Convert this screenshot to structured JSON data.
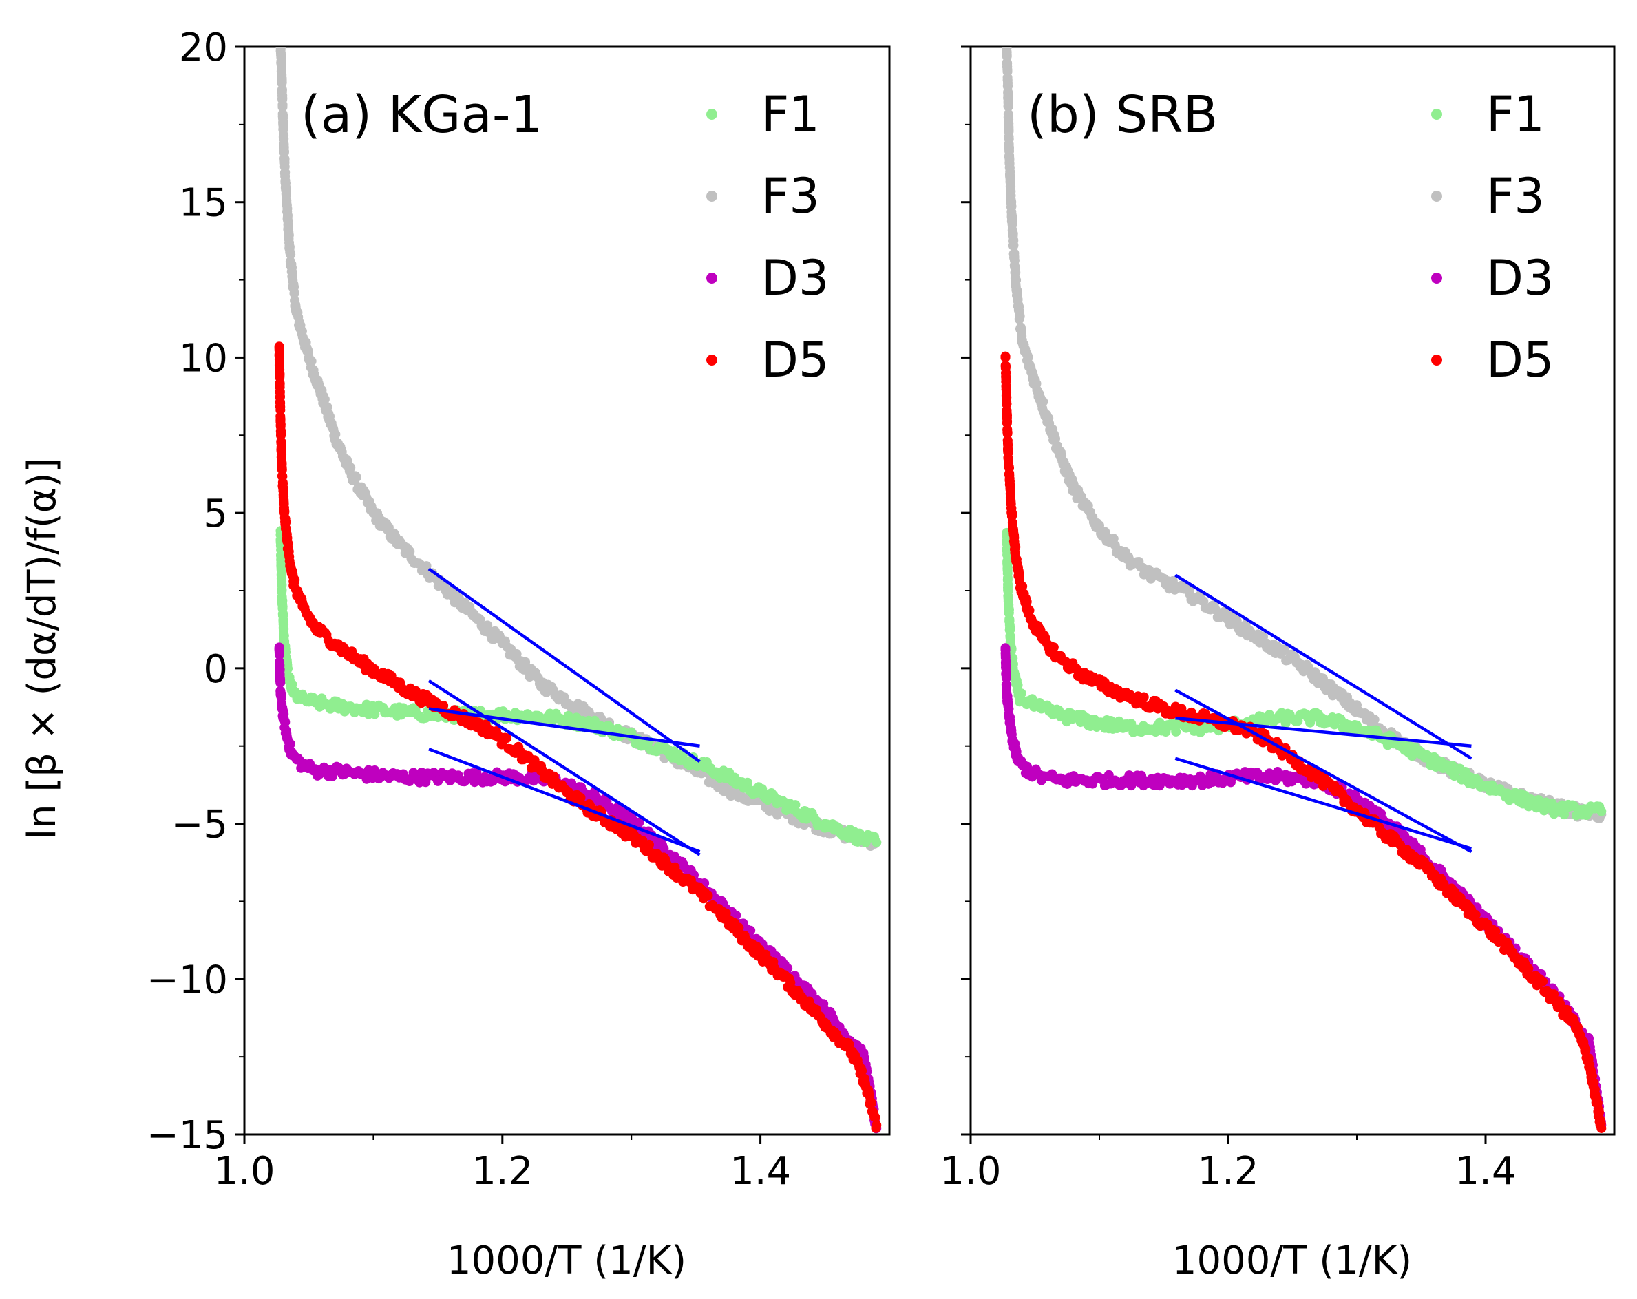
{
  "figure": {
    "ylabel": "ln [β × (dα/dT)/f(α)]",
    "xlabel": "1000/T (1/K)"
  },
  "colors": {
    "F1": "#90ee90",
    "F3": "#c0c0c0",
    "D3": "#bf00bf",
    "D5": "#ff0000",
    "fit": "#0000ff"
  },
  "chart_data": [
    {
      "type": "scatter",
      "panel": "a",
      "title": "(a) KGa-1",
      "xlabel": "1000/T (1/K)",
      "ylabel": "ln [β × (dα/dT)/f(α)]",
      "xlim": [
        1.0,
        1.5
      ],
      "ylim": [
        -15,
        20
      ],
      "xticks": [
        1.0,
        1.2,
        1.4
      ],
      "yticks": [
        -15,
        -10,
        -5,
        0,
        5,
        10,
        15,
        20
      ],
      "legend": [
        "F1",
        "F3",
        "D3",
        "D5"
      ],
      "legend_position": "top-right",
      "series": [
        {
          "name": "F1",
          "x": [
            1.028,
            1.029,
            1.031,
            1.034,
            1.038,
            1.045,
            1.055,
            1.07,
            1.09,
            1.12,
            1.15,
            1.18,
            1.21,
            1.24,
            1.27,
            1.3,
            1.33,
            1.36,
            1.39,
            1.42,
            1.45,
            1.48,
            1.49
          ],
          "y": [
            4.3,
            2.5,
            0.8,
            -0.3,
            -0.8,
            -1.0,
            -1.1,
            -1.2,
            -1.3,
            -1.4,
            -1.5,
            -1.5,
            -1.5,
            -1.6,
            -1.8,
            -2.2,
            -2.7,
            -3.2,
            -3.8,
            -4.4,
            -5.0,
            -5.5,
            -5.6
          ]
        },
        {
          "name": "F3",
          "x": [
            1.028,
            1.029,
            1.03,
            1.032,
            1.035,
            1.04,
            1.05,
            1.06,
            1.07,
            1.08,
            1.1,
            1.12,
            1.14,
            1.17,
            1.2,
            1.23,
            1.26,
            1.29,
            1.32,
            1.35,
            1.38,
            1.41,
            1.44,
            1.47,
            1.49
          ],
          "y": [
            20.0,
            19.0,
            17.5,
            15.5,
            13.5,
            11.5,
            10.0,
            8.8,
            7.5,
            6.5,
            5.0,
            4.0,
            3.2,
            2.0,
            0.8,
            -0.5,
            -1.3,
            -2.0,
            -2.6,
            -3.3,
            -4.0,
            -4.5,
            -5.0,
            -5.4,
            -5.6
          ]
        },
        {
          "name": "D3",
          "x": [
            1.027,
            1.028,
            1.03,
            1.033,
            1.037,
            1.045,
            1.055,
            1.07,
            1.09,
            1.12,
            1.15,
            1.18,
            1.21,
            1.24,
            1.27,
            1.3,
            1.33,
            1.36,
            1.39,
            1.42,
            1.45,
            1.48,
            1.49
          ],
          "y": [
            0.6,
            -0.8,
            -1.5,
            -2.2,
            -2.8,
            -3.1,
            -3.3,
            -3.3,
            -3.4,
            -3.5,
            -3.5,
            -3.5,
            -3.5,
            -3.6,
            -4.1,
            -4.9,
            -6.0,
            -7.2,
            -8.5,
            -9.7,
            -11.0,
            -12.5,
            -14.8
          ]
        },
        {
          "name": "D5",
          "x": [
            1.027,
            1.028,
            1.029,
            1.031,
            1.034,
            1.038,
            1.045,
            1.055,
            1.07,
            1.09,
            1.11,
            1.13,
            1.15,
            1.17,
            1.19,
            1.21,
            1.23,
            1.25,
            1.27,
            1.29,
            1.31,
            1.33,
            1.35,
            1.37,
            1.39,
            1.41,
            1.43,
            1.45,
            1.47,
            1.48,
            1.49
          ],
          "y": [
            10.3,
            8.0,
            6.5,
            5.0,
            3.8,
            2.8,
            2.0,
            1.3,
            0.8,
            0.2,
            -0.3,
            -0.8,
            -1.2,
            -1.6,
            -2.0,
            -2.6,
            -3.3,
            -4.0,
            -4.6,
            -5.1,
            -5.7,
            -6.4,
            -7.1,
            -7.9,
            -8.8,
            -9.6,
            -10.5,
            -11.4,
            -12.3,
            -13.2,
            -14.7
          ]
        }
      ],
      "fit_lines": [
        {
          "name": "F3 fit",
          "x": [
            1.143,
            1.353
          ],
          "y": [
            3.2,
            -3.0
          ]
        },
        {
          "name": "F1 fit",
          "x": [
            1.143,
            1.353
          ],
          "y": [
            -1.3,
            -2.5
          ]
        },
        {
          "name": "D5 fit",
          "x": [
            1.143,
            1.353
          ],
          "y": [
            -0.4,
            -6.0
          ]
        },
        {
          "name": "D3 fit",
          "x": [
            1.143,
            1.353
          ],
          "y": [
            -2.6,
            -5.9
          ]
        }
      ]
    },
    {
      "type": "scatter",
      "panel": "b",
      "title": "(b) SRB",
      "xlabel": "1000/T (1/K)",
      "xlim": [
        1.0,
        1.5
      ],
      "ylim": [
        -15,
        20
      ],
      "xticks": [
        1.0,
        1.2,
        1.4
      ],
      "legend": [
        "F1",
        "F3",
        "D3",
        "D5"
      ],
      "legend_position": "top-right",
      "series": [
        {
          "name": "F1",
          "x": [
            1.028,
            1.029,
            1.031,
            1.034,
            1.038,
            1.045,
            1.055,
            1.07,
            1.09,
            1.12,
            1.15,
            1.18,
            1.21,
            1.24,
            1.27,
            1.3,
            1.33,
            1.36,
            1.39,
            1.42,
            1.45,
            1.48,
            1.49
          ],
          "y": [
            4.3,
            2.5,
            0.8,
            -0.3,
            -0.9,
            -1.1,
            -1.3,
            -1.5,
            -1.7,
            -1.9,
            -1.9,
            -1.9,
            -1.8,
            -1.6,
            -1.6,
            -1.9,
            -2.4,
            -3.0,
            -3.6,
            -4.1,
            -4.5,
            -4.6,
            -4.6
          ]
        },
        {
          "name": "F3",
          "x": [
            1.028,
            1.029,
            1.03,
            1.032,
            1.035,
            1.04,
            1.05,
            1.06,
            1.07,
            1.08,
            1.1,
            1.12,
            1.14,
            1.17,
            1.2,
            1.23,
            1.26,
            1.29,
            1.32,
            1.35,
            1.38,
            1.41,
            1.44,
            1.47,
            1.49
          ],
          "y": [
            20.0,
            18.5,
            16.5,
            14.5,
            12.5,
            10.5,
            9.2,
            8.0,
            6.8,
            5.8,
            4.5,
            3.6,
            3.0,
            2.4,
            1.6,
            0.8,
            0.0,
            -1.0,
            -2.0,
            -2.8,
            -3.4,
            -3.9,
            -4.3,
            -4.6,
            -4.7
          ]
        },
        {
          "name": "D3",
          "x": [
            1.027,
            1.028,
            1.03,
            1.033,
            1.037,
            1.045,
            1.055,
            1.07,
            1.09,
            1.12,
            1.15,
            1.18,
            1.21,
            1.24,
            1.27,
            1.3,
            1.33,
            1.36,
            1.39,
            1.42,
            1.45,
            1.48,
            1.49
          ],
          "y": [
            0.6,
            -0.8,
            -1.6,
            -2.4,
            -3.0,
            -3.3,
            -3.5,
            -3.6,
            -3.6,
            -3.6,
            -3.6,
            -3.6,
            -3.5,
            -3.5,
            -3.6,
            -4.2,
            -5.2,
            -6.4,
            -7.7,
            -9.0,
            -10.3,
            -12.0,
            -14.7
          ]
        },
        {
          "name": "D5",
          "x": [
            1.027,
            1.028,
            1.029,
            1.031,
            1.034,
            1.038,
            1.045,
            1.055,
            1.07,
            1.09,
            1.11,
            1.13,
            1.15,
            1.17,
            1.19,
            1.21,
            1.23,
            1.25,
            1.27,
            1.29,
            1.31,
            1.33,
            1.35,
            1.37,
            1.39,
            1.41,
            1.43,
            1.45,
            1.47,
            1.48,
            1.49
          ],
          "y": [
            10.0,
            8.5,
            7.0,
            5.5,
            4.0,
            2.8,
            1.8,
            1.0,
            0.3,
            -0.3,
            -0.7,
            -1.0,
            -1.3,
            -1.5,
            -1.7,
            -1.9,
            -2.3,
            -2.9,
            -3.5,
            -4.2,
            -4.9,
            -5.6,
            -6.3,
            -7.1,
            -7.9,
            -8.7,
            -9.6,
            -10.5,
            -11.5,
            -12.6,
            -14.8
          ]
        }
      ],
      "fit_lines": [
        {
          "name": "F3 fit",
          "x": [
            1.159,
            1.389
          ],
          "y": [
            3.0,
            -2.9
          ]
        },
        {
          "name": "F1 fit",
          "x": [
            1.159,
            1.389
          ],
          "y": [
            -1.6,
            -2.5
          ]
        },
        {
          "name": "D5 fit",
          "x": [
            1.159,
            1.389
          ],
          "y": [
            -0.7,
            -5.9
          ]
        },
        {
          "name": "D3 fit",
          "x": [
            1.159,
            1.389
          ],
          "y": [
            -2.9,
            -5.8
          ]
        }
      ]
    }
  ]
}
